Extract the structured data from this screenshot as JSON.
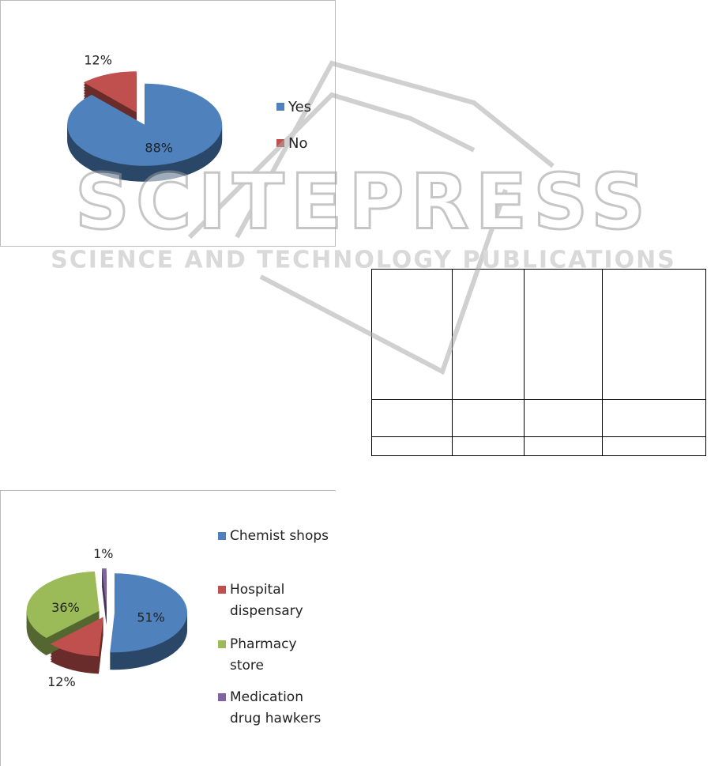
{
  "watermark": {
    "title": "SCITEPRESS",
    "subtitle": "SCIENCE AND TECHNOLOGY PUBLICATIONS"
  },
  "chart_data": [
    {
      "type": "pie",
      "categories": [
        "Yes",
        "No"
      ],
      "values": [
        88,
        12
      ],
      "value_labels": [
        "88%",
        "12%"
      ],
      "colors": [
        "#4f81bd",
        "#c0504d"
      ],
      "legend": "right"
    },
    {
      "type": "pie",
      "categories": [
        "Chemist shops",
        "Hospital dispensary",
        "Pharmacy store",
        "Medication drug hawkers"
      ],
      "values": [
        51,
        12,
        36,
        1
      ],
      "value_labels": [
        "51%",
        "12%",
        "36%",
        "1%"
      ],
      "colors": [
        "#4f81bd",
        "#c0504d",
        "#9bbb59",
        "#8064a2"
      ],
      "legend": "right"
    }
  ]
}
